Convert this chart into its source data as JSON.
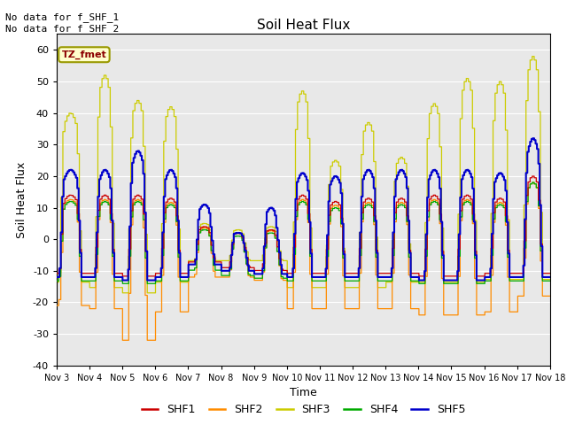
{
  "title": "Soil Heat Flux",
  "xlabel": "Time",
  "ylabel": "Soil Heat Flux",
  "ylim": [
    -40,
    65
  ],
  "yticks": [
    -40,
    -30,
    -20,
    -10,
    0,
    10,
    20,
    30,
    40,
    50,
    60
  ],
  "bg_color": "#e8e8e8",
  "annotation_text": "No data for f_SHF_1\nNo data for f_SHF_2",
  "legend_label": "TZ_fmet",
  "legend_entries": [
    "SHF1",
    "SHF2",
    "SHF3",
    "SHF4",
    "SHF5"
  ],
  "line_colors": [
    "#cc0000",
    "#ff8c00",
    "#cccc00",
    "#00aa00",
    "#0000cc"
  ],
  "xtick_labels": [
    "Nov 3",
    "Nov 4",
    "Nov 5",
    "Nov 6",
    "Nov 7",
    "Nov 8",
    "Nov 9",
    "Nov 10",
    "Nov 11",
    "Nov 12",
    "Nov 13",
    "Nov 14",
    "Nov 15",
    "Nov 16",
    "Nov 17",
    "Nov 18"
  ],
  "linewidth_shf5": 1.5,
  "linewidth_others": 0.9
}
